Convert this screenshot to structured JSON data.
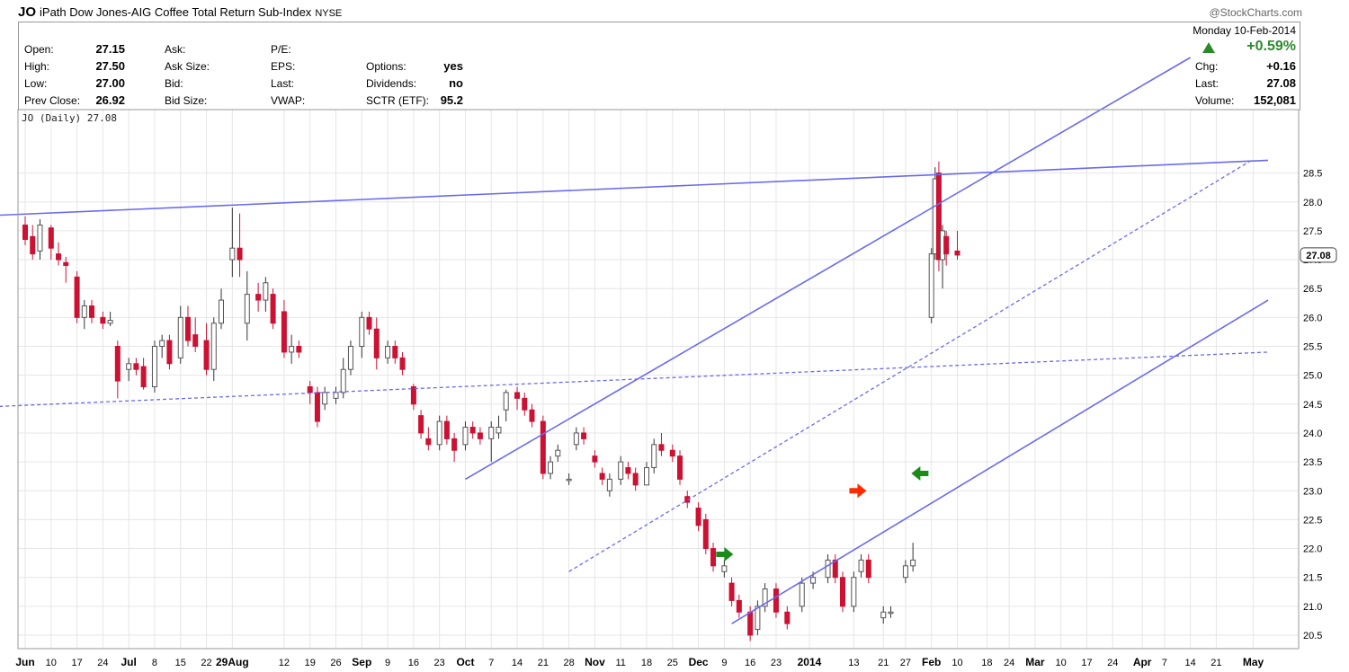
{
  "header": {
    "symbol": "JO",
    "name": "iPath Dow Jones-AIG Coffee Total Return Sub-Index",
    "exchange": "NYSE",
    "credit": "@StockCharts.com",
    "date": "Monday 10-Feb-2014"
  },
  "quote": {
    "left": [
      {
        "label": "Open:",
        "value": "27.15"
      },
      {
        "label": "High:",
        "value": "27.50"
      },
      {
        "label": "Low:",
        "value": "27.00"
      },
      {
        "label": "Prev Close:",
        "value": "26.92"
      }
    ],
    "mid": [
      {
        "label": "Ask:",
        "value": ""
      },
      {
        "label": "Ask Size:",
        "value": ""
      },
      {
        "label": "Bid:",
        "value": ""
      },
      {
        "label": "Bid Size:",
        "value": ""
      }
    ],
    "mid2": [
      {
        "label": "P/E:",
        "value": ""
      },
      {
        "label": "EPS:",
        "value": ""
      },
      {
        "label": "Last:",
        "value": ""
      },
      {
        "label": "VWAP:",
        "value": ""
      }
    ],
    "mid3": [
      {
        "label": "",
        "value": ""
      },
      {
        "label": "Options:",
        "value": "yes"
      },
      {
        "label": "Dividends:",
        "value": "no"
      },
      {
        "label": "SCTR (ETF):",
        "value": "95.2"
      }
    ],
    "right": {
      "change_pct": "+0.59%",
      "chg_label": "Chg:",
      "chg": "+0.16",
      "last_label": "Last:",
      "last": "27.08",
      "volume_label": "Volume:",
      "volume": "152,081"
    }
  },
  "chart_data": {
    "type": "candlestick",
    "legend": "JO (Daily) 27.08",
    "last_price_label": "27.08",
    "ylim": [
      20.3,
      28.8
    ],
    "y_ticks": [
      "20.5",
      "21.0",
      "21.5",
      "22.0",
      "22.5",
      "23.0",
      "23.5",
      "24.0",
      "24.5",
      "25.0",
      "25.5",
      "26.0",
      "26.5",
      "27.0",
      "27.5",
      "28.0",
      "28.5"
    ],
    "x_ticks": [
      "Jun",
      "10",
      "17",
      "24",
      "Jul",
      "8",
      "15",
      "22",
      "29Aug",
      "12",
      "19",
      "26",
      "Sep",
      "9",
      "16",
      "23",
      "Oct",
      "7",
      "14",
      "21",
      "28",
      "Nov",
      "11",
      "18",
      "25",
      "Dec",
      "9",
      "16",
      "23",
      "2014",
      "13",
      "21",
      "27",
      "Feb",
      "10",
      "18",
      "24",
      "Mar",
      "10",
      "17",
      "24",
      "Apr",
      "7",
      "14",
      "21",
      "May"
    ],
    "x_range": [
      "2013-06-03",
      "2014-05-05"
    ],
    "x_tick_dates": [
      "2013-06-03",
      "2013-06-10",
      "2013-06-17",
      "2013-06-24",
      "2013-07-01",
      "2013-07-08",
      "2013-07-15",
      "2013-07-22",
      "2013-07-29",
      "2013-08-12",
      "2013-08-19",
      "2013-08-26",
      "2013-09-02",
      "2013-09-09",
      "2013-09-16",
      "2013-09-23",
      "2013-09-30",
      "2013-10-07",
      "2013-10-14",
      "2013-10-21",
      "2013-10-28",
      "2013-11-04",
      "2013-11-11",
      "2013-11-18",
      "2013-11-25",
      "2013-12-02",
      "2013-12-09",
      "2013-12-16",
      "2013-12-23",
      "2014-01-01",
      "2014-01-13",
      "2014-01-21",
      "2014-01-27",
      "2014-02-03",
      "2014-02-10",
      "2014-02-18",
      "2014-02-24",
      "2014-03-03",
      "2014-03-10",
      "2014-03-17",
      "2014-03-24",
      "2014-04-01",
      "2014-04-07",
      "2014-04-14",
      "2014-04-21",
      "2014-05-01"
    ],
    "candles": [
      {
        "d": "2013-06-03",
        "o": 27.6,
        "h": 27.75,
        "l": 27.25,
        "c": 27.35
      },
      {
        "d": "2013-06-05",
        "o": 27.4,
        "h": 27.6,
        "l": 27.0,
        "c": 27.1
      },
      {
        "d": "2013-06-07",
        "o": 27.15,
        "h": 27.7,
        "l": 27.0,
        "c": 27.6
      },
      {
        "d": "2013-06-10",
        "o": 27.55,
        "h": 27.6,
        "l": 27.0,
        "c": 27.2
      },
      {
        "d": "2013-06-12",
        "o": 27.1,
        "h": 27.3,
        "l": 26.9,
        "c": 27.0
      },
      {
        "d": "2013-06-14",
        "o": 26.95,
        "h": 27.05,
        "l": 26.6,
        "c": 26.9
      },
      {
        "d": "2013-06-17",
        "o": 26.7,
        "h": 26.8,
        "l": 25.9,
        "c": 26.0
      },
      {
        "d": "2013-06-19",
        "o": 26.0,
        "h": 26.3,
        "l": 25.8,
        "c": 26.2
      },
      {
        "d": "2013-06-21",
        "o": 26.2,
        "h": 26.3,
        "l": 25.9,
        "c": 26.0
      },
      {
        "d": "2013-06-24",
        "o": 26.0,
        "h": 26.1,
        "l": 25.8,
        "c": 25.9
      },
      {
        "d": "2013-06-26",
        "o": 25.9,
        "h": 26.1,
        "l": 25.85,
        "c": 25.95
      },
      {
        "d": "2013-06-28",
        "o": 25.5,
        "h": 25.6,
        "l": 24.6,
        "c": 24.9
      },
      {
        "d": "2013-07-01",
        "o": 25.1,
        "h": 25.3,
        "l": 24.9,
        "c": 25.2
      },
      {
        "d": "2013-07-03",
        "o": 25.2,
        "h": 25.3,
        "l": 25.0,
        "c": 25.1
      },
      {
        "d": "2013-07-05",
        "o": 25.15,
        "h": 25.3,
        "l": 24.75,
        "c": 24.8
      },
      {
        "d": "2013-07-08",
        "o": 24.8,
        "h": 25.6,
        "l": 24.7,
        "c": 25.5
      },
      {
        "d": "2013-07-10",
        "o": 25.5,
        "h": 25.7,
        "l": 25.3,
        "c": 25.6
      },
      {
        "d": "2013-07-12",
        "o": 25.6,
        "h": 25.7,
        "l": 25.1,
        "c": 25.2
      },
      {
        "d": "2013-07-15",
        "o": 25.3,
        "h": 26.2,
        "l": 25.2,
        "c": 26.0
      },
      {
        "d": "2013-07-17",
        "o": 26.0,
        "h": 26.2,
        "l": 25.5,
        "c": 25.6
      },
      {
        "d": "2013-07-19",
        "o": 25.7,
        "h": 26.0,
        "l": 25.4,
        "c": 25.5
      },
      {
        "d": "2013-07-22",
        "o": 25.6,
        "h": 25.9,
        "l": 25.0,
        "c": 25.1
      },
      {
        "d": "2013-07-24",
        "o": 25.1,
        "h": 26.0,
        "l": 24.9,
        "c": 25.9
      },
      {
        "d": "2013-07-26",
        "o": 25.9,
        "h": 26.5,
        "l": 25.8,
        "c": 26.3
      },
      {
        "d": "2013-07-29",
        "o": 27.0,
        "h": 27.9,
        "l": 26.7,
        "c": 27.2
      },
      {
        "d": "2013-07-31",
        "o": 27.2,
        "h": 27.8,
        "l": 26.7,
        "c": 27.0
      },
      {
        "d": "2013-08-02",
        "o": 25.9,
        "h": 26.8,
        "l": 25.6,
        "c": 26.4
      },
      {
        "d": "2013-08-05",
        "o": 26.4,
        "h": 26.6,
        "l": 26.1,
        "c": 26.3
      },
      {
        "d": "2013-08-07",
        "o": 26.3,
        "h": 26.7,
        "l": 26.1,
        "c": 26.6
      },
      {
        "d": "2013-08-09",
        "o": 26.4,
        "h": 26.5,
        "l": 25.8,
        "c": 25.9
      },
      {
        "d": "2013-08-12",
        "o": 26.1,
        "h": 26.3,
        "l": 25.3,
        "c": 25.4
      },
      {
        "d": "2013-08-14",
        "o": 25.4,
        "h": 25.7,
        "l": 25.2,
        "c": 25.5
      },
      {
        "d": "2013-08-16",
        "o": 25.5,
        "h": 25.6,
        "l": 25.3,
        "c": 25.4
      },
      {
        "d": "2013-08-19",
        "o": 24.8,
        "h": 24.9,
        "l": 24.5,
        "c": 24.7
      },
      {
        "d": "2013-08-21",
        "o": 24.7,
        "h": 24.8,
        "l": 24.1,
        "c": 24.2
      },
      {
        "d": "2013-08-23",
        "o": 24.5,
        "h": 24.8,
        "l": 24.4,
        "c": 24.7
      },
      {
        "d": "2013-08-26",
        "o": 24.6,
        "h": 24.8,
        "l": 24.5,
        "c": 24.7
      },
      {
        "d": "2013-08-28",
        "o": 24.7,
        "h": 25.3,
        "l": 24.6,
        "c": 25.1
      },
      {
        "d": "2013-08-30",
        "o": 25.1,
        "h": 25.6,
        "l": 25.0,
        "c": 25.5
      },
      {
        "d": "2013-09-02",
        "o": 25.5,
        "h": 26.1,
        "l": 25.3,
        "c": 26.0
      },
      {
        "d": "2013-09-04",
        "o": 26.0,
        "h": 26.1,
        "l": 25.7,
        "c": 25.8
      },
      {
        "d": "2013-09-06",
        "o": 25.8,
        "h": 26.0,
        "l": 25.1,
        "c": 25.3
      },
      {
        "d": "2013-09-09",
        "o": 25.3,
        "h": 25.6,
        "l": 25.2,
        "c": 25.5
      },
      {
        "d": "2013-09-11",
        "o": 25.5,
        "h": 25.6,
        "l": 25.2,
        "c": 25.3
      },
      {
        "d": "2013-09-13",
        "o": 25.3,
        "h": 25.4,
        "l": 25.0,
        "c": 25.1
      },
      {
        "d": "2013-09-16",
        "o": 24.8,
        "h": 24.85,
        "l": 24.4,
        "c": 24.5
      },
      {
        "d": "2013-09-18",
        "o": 24.3,
        "h": 24.4,
        "l": 23.9,
        "c": 24.0
      },
      {
        "d": "2013-09-20",
        "o": 23.9,
        "h": 24.1,
        "l": 23.7,
        "c": 23.8
      },
      {
        "d": "2013-09-23",
        "o": 23.8,
        "h": 24.3,
        "l": 23.7,
        "c": 24.2
      },
      {
        "d": "2013-09-25",
        "o": 24.2,
        "h": 24.3,
        "l": 23.8,
        "c": 23.9
      },
      {
        "d": "2013-09-27",
        "o": 23.9,
        "h": 24.0,
        "l": 23.5,
        "c": 23.7
      },
      {
        "d": "2013-09-30",
        "o": 23.8,
        "h": 24.2,
        "l": 23.7,
        "c": 24.1
      },
      {
        "d": "2013-10-02",
        "o": 24.1,
        "h": 24.2,
        "l": 23.9,
        "c": 24.0
      },
      {
        "d": "2013-10-04",
        "o": 24.0,
        "h": 24.1,
        "l": 23.8,
        "c": 23.9
      },
      {
        "d": "2013-10-07",
        "o": 23.9,
        "h": 24.2,
        "l": 23.5,
        "c": 24.1
      },
      {
        "d": "2013-10-09",
        "o": 24.0,
        "h": 24.3,
        "l": 23.9,
        "c": 24.1
      },
      {
        "d": "2013-10-11",
        "o": 24.4,
        "h": 24.75,
        "l": 24.2,
        "c": 24.7
      },
      {
        "d": "2013-10-14",
        "o": 24.7,
        "h": 24.8,
        "l": 24.4,
        "c": 24.6
      },
      {
        "d": "2013-10-16",
        "o": 24.6,
        "h": 24.7,
        "l": 24.3,
        "c": 24.4
      },
      {
        "d": "2013-10-18",
        "o": 24.4,
        "h": 24.5,
        "l": 24.1,
        "c": 24.2
      },
      {
        "d": "2013-10-21",
        "o": 24.2,
        "h": 24.3,
        "l": 23.2,
        "c": 23.3
      },
      {
        "d": "2013-10-23",
        "o": 23.3,
        "h": 23.6,
        "l": 23.2,
        "c": 23.5
      },
      {
        "d": "2013-10-25",
        "o": 23.6,
        "h": 23.8,
        "l": 23.5,
        "c": 23.7
      },
      {
        "d": "2013-10-28",
        "o": 23.2,
        "h": 23.3,
        "l": 23.1,
        "c": 23.2
      },
      {
        "d": "2013-10-30",
        "o": 23.8,
        "h": 24.1,
        "l": 23.7,
        "c": 24.0
      },
      {
        "d": "2013-11-01",
        "o": 24.0,
        "h": 24.1,
        "l": 23.8,
        "c": 23.9
      },
      {
        "d": "2013-11-04",
        "o": 23.6,
        "h": 23.7,
        "l": 23.4,
        "c": 23.5
      },
      {
        "d": "2013-11-06",
        "o": 23.3,
        "h": 23.4,
        "l": 23.1,
        "c": 23.2
      },
      {
        "d": "2013-11-08",
        "o": 23.0,
        "h": 23.3,
        "l": 22.9,
        "c": 23.2
      },
      {
        "d": "2013-11-11",
        "o": 23.2,
        "h": 23.6,
        "l": 23.1,
        "c": 23.5
      },
      {
        "d": "2013-11-13",
        "o": 23.4,
        "h": 23.5,
        "l": 23.2,
        "c": 23.3
      },
      {
        "d": "2013-11-15",
        "o": 23.3,
        "h": 23.4,
        "l": 23.0,
        "c": 23.1
      },
      {
        "d": "2013-11-18",
        "o": 23.1,
        "h": 23.5,
        "l": 23.1,
        "c": 23.4
      },
      {
        "d": "2013-11-20",
        "o": 23.4,
        "h": 23.9,
        "l": 23.3,
        "c": 23.8
      },
      {
        "d": "2013-11-22",
        "o": 23.8,
        "h": 24.0,
        "l": 23.6,
        "c": 23.7
      },
      {
        "d": "2013-11-25",
        "o": 23.7,
        "h": 23.8,
        "l": 23.5,
        "c": 23.6
      },
      {
        "d": "2013-11-27",
        "o": 23.6,
        "h": 23.7,
        "l": 23.1,
        "c": 23.2
      },
      {
        "d": "2013-11-29",
        "o": 22.9,
        "h": 23.0,
        "l": 22.7,
        "c": 22.8
      },
      {
        "d": "2013-12-02",
        "o": 22.7,
        "h": 22.8,
        "l": 22.3,
        "c": 22.4
      },
      {
        "d": "2013-12-04",
        "o": 22.5,
        "h": 22.6,
        "l": 21.9,
        "c": 22.0
      },
      {
        "d": "2013-12-06",
        "o": 22.0,
        "h": 22.1,
        "l": 21.6,
        "c": 21.7
      },
      {
        "d": "2013-12-09",
        "o": 21.6,
        "h": 21.8,
        "l": 21.5,
        "c": 21.7
      },
      {
        "d": "2013-12-11",
        "o": 21.4,
        "h": 21.5,
        "l": 21.0,
        "c": 21.1
      },
      {
        "d": "2013-12-13",
        "o": 21.1,
        "h": 21.2,
        "l": 20.8,
        "c": 20.9
      },
      {
        "d": "2013-12-16",
        "o": 20.9,
        "h": 21.0,
        "l": 20.4,
        "c": 20.5
      },
      {
        "d": "2013-12-18",
        "o": 20.6,
        "h": 21.1,
        "l": 20.5,
        "c": 21.0
      },
      {
        "d": "2013-12-20",
        "o": 21.0,
        "h": 21.4,
        "l": 20.9,
        "c": 21.3
      },
      {
        "d": "2013-12-23",
        "o": 21.3,
        "h": 21.4,
        "l": 20.8,
        "c": 20.9
      },
      {
        "d": "2013-12-26",
        "o": 20.9,
        "h": 21.0,
        "l": 20.6,
        "c": 20.7
      },
      {
        "d": "2013-12-30",
        "o": 21.0,
        "h": 21.5,
        "l": 20.9,
        "c": 21.4
      },
      {
        "d": "2014-01-02",
        "o": 21.4,
        "h": 21.6,
        "l": 21.3,
        "c": 21.5
      },
      {
        "d": "2014-01-06",
        "o": 21.5,
        "h": 21.9,
        "l": 21.4,
        "c": 21.8
      },
      {
        "d": "2014-01-08",
        "o": 21.8,
        "h": 21.9,
        "l": 21.4,
        "c": 21.5
      },
      {
        "d": "2014-01-10",
        "o": 21.5,
        "h": 21.6,
        "l": 20.9,
        "c": 21.0
      },
      {
        "d": "2014-01-13",
        "o": 21.0,
        "h": 21.6,
        "l": 20.9,
        "c": 21.5
      },
      {
        "d": "2014-01-15",
        "o": 21.6,
        "h": 21.9,
        "l": 21.5,
        "c": 21.8
      },
      {
        "d": "2014-01-17",
        "o": 21.8,
        "h": 21.9,
        "l": 21.4,
        "c": 21.5
      },
      {
        "d": "2014-01-21",
        "o": 20.8,
        "h": 21.0,
        "l": 20.7,
        "c": 20.9
      },
      {
        "d": "2014-01-23",
        "o": 20.9,
        "h": 21.0,
        "l": 20.8,
        "c": 20.9
      },
      {
        "d": "2014-01-27",
        "o": 21.5,
        "h": 21.8,
        "l": 21.4,
        "c": 21.7
      },
      {
        "d": "2014-01-29",
        "o": 21.7,
        "h": 22.1,
        "l": 21.6,
        "c": 21.8
      },
      {
        "d": "2014-02-03",
        "o": 26.0,
        "h": 27.2,
        "l": 25.9,
        "c": 27.1
      },
      {
        "d": "2014-02-04",
        "o": 27.1,
        "h": 28.6,
        "l": 27.0,
        "c": 28.4
      },
      {
        "d": "2014-02-05",
        "o": 28.5,
        "h": 28.7,
        "l": 26.8,
        "c": 27.0
      },
      {
        "d": "2014-02-06",
        "o": 27.0,
        "h": 27.6,
        "l": 26.5,
        "c": 27.5
      },
      {
        "d": "2014-02-07",
        "o": 27.4,
        "h": 27.5,
        "l": 26.9,
        "c": 27.1
      },
      {
        "d": "2014-02-10",
        "o": 27.15,
        "h": 27.5,
        "l": 27.0,
        "c": 27.08
      }
    ],
    "trendlines": [
      {
        "style": "solid",
        "from": {
          "d": "2013-05-27",
          "v": 27.77
        },
        "to": {
          "d": "2014-05-05",
          "v": 28.72
        }
      },
      {
        "style": "dashed",
        "from": {
          "d": "2013-05-27",
          "v": 24.46
        },
        "to": {
          "d": "2014-05-05",
          "v": 25.4
        }
      },
      {
        "style": "solid",
        "from": {
          "d": "2013-09-30",
          "v": 23.2
        },
        "to": {
          "d": "2014-04-14",
          "v": 30.5
        }
      },
      {
        "style": "dashed",
        "from": {
          "d": "2013-10-28",
          "v": 21.6
        },
        "to": {
          "d": "2014-04-30",
          "v": 28.7
        }
      },
      {
        "style": "solid",
        "from": {
          "d": "2013-12-11",
          "v": 20.7
        },
        "to": {
          "d": "2014-05-05",
          "v": 26.3
        }
      }
    ],
    "arrows": [
      {
        "d": "2013-12-09",
        "v": 21.9,
        "dir": "right",
        "color": "#1a8c1a"
      },
      {
        "d": "2014-01-14",
        "v": 23.0,
        "dir": "right",
        "color": "#ff2a00"
      },
      {
        "d": "2014-01-31",
        "v": 23.3,
        "dir": "left",
        "color": "#1a8c1a"
      }
    ],
    "colors": {
      "up_fill": "#ffffff",
      "down_fill": "#cc1133",
      "outline": "#555555",
      "black": "#111111",
      "trend": "#6a6af0",
      "grid": "#e6e6e6"
    }
  }
}
